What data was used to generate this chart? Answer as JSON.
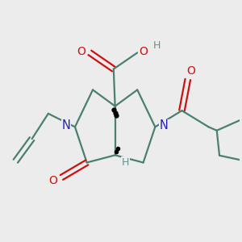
{
  "background_color": "#ececec",
  "bond_color": "#4a8070",
  "nitrogen_color": "#2222bb",
  "oxygen_color": "#cc1111",
  "hydrogen_color": "#6a9090",
  "bond_width": 1.6,
  "figsize": [
    3.0,
    3.0
  ],
  "dpi": 100,
  "xlim": [
    -3.8,
    4.2
  ],
  "ylim": [
    -3.2,
    3.8
  ]
}
